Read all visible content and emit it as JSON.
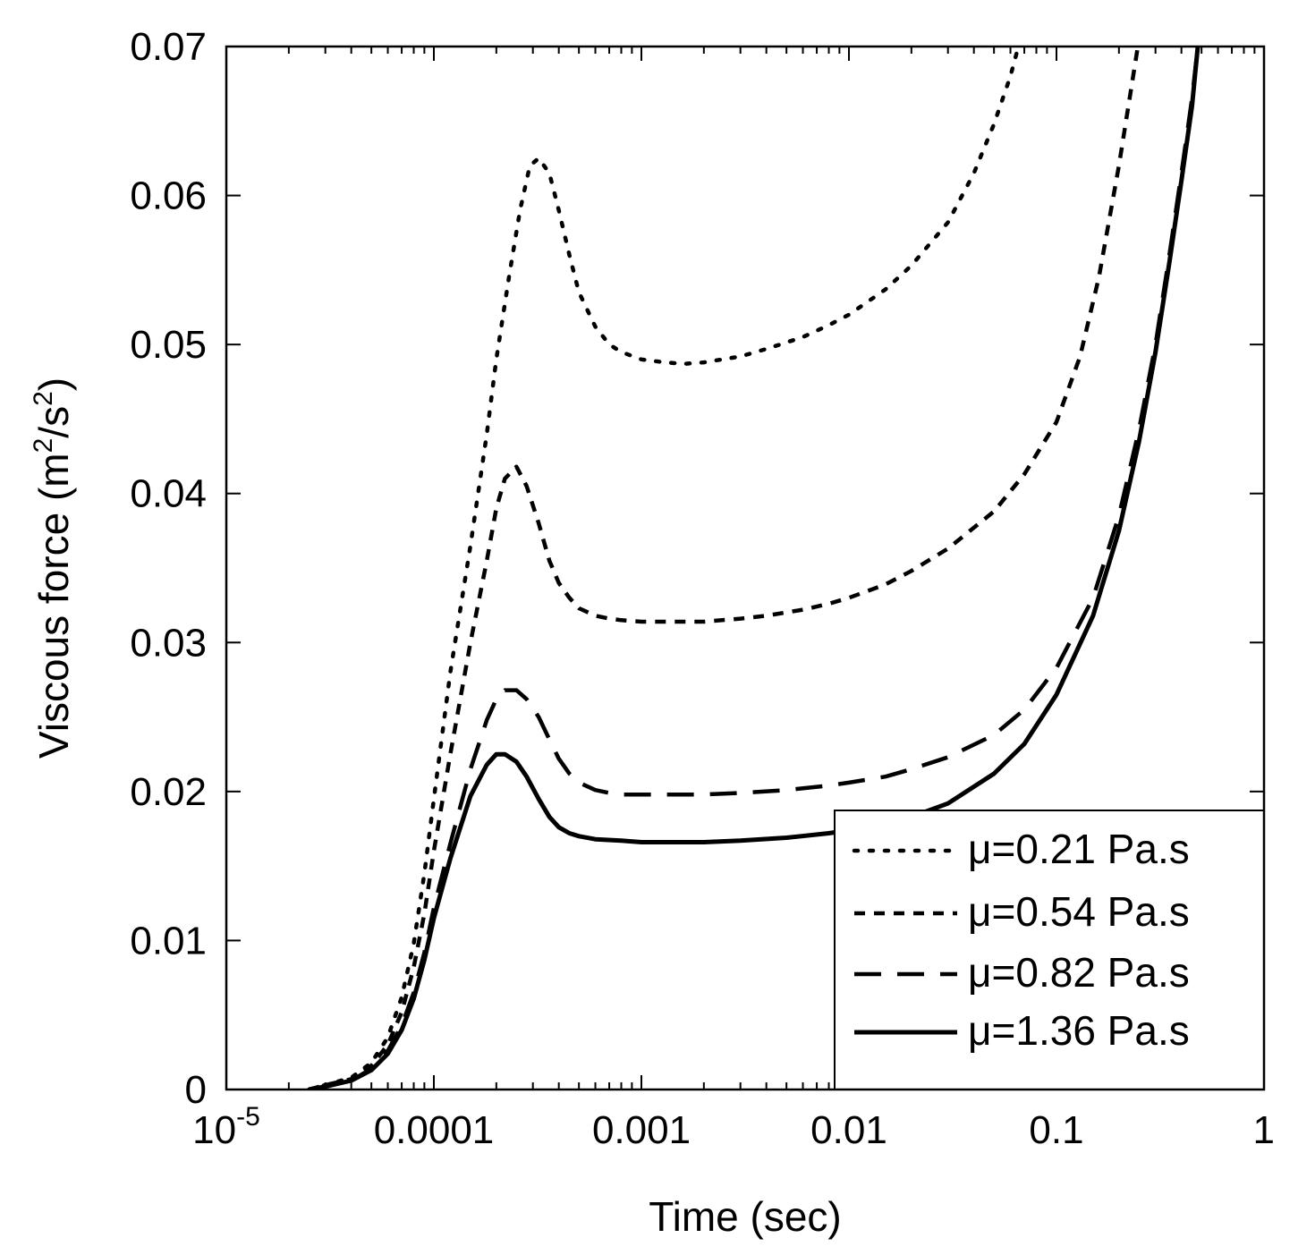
{
  "chart_data": {
    "type": "line",
    "title": "",
    "xlabel": "Time (sec)",
    "ylabel": "Viscous force (m",
    "ylabel_sup1": "2",
    "ylabel_mid": "/s",
    "ylabel_sup2": "2",
    "ylabel_end": ")",
    "xscale": "log",
    "xlim": [
      1e-05,
      1
    ],
    "ylim": [
      0,
      0.07
    ],
    "x_ticks": [
      {
        "value": 1e-05,
        "base": "10",
        "exp": "-5"
      },
      {
        "value": 0.0001,
        "label": "0.0001"
      },
      {
        "value": 0.001,
        "label": "0.001"
      },
      {
        "value": 0.01,
        "label": "0.01"
      },
      {
        "value": 0.1,
        "label": "0.1"
      },
      {
        "value": 1,
        "label": "1"
      }
    ],
    "y_ticks": [
      {
        "value": 0,
        "label": "0"
      },
      {
        "value": 0.01,
        "label": "0.01"
      },
      {
        "value": 0.02,
        "label": "0.02"
      },
      {
        "value": 0.03,
        "label": "0.03"
      },
      {
        "value": 0.04,
        "label": "0.04"
      },
      {
        "value": 0.05,
        "label": "0.05"
      },
      {
        "value": 0.06,
        "label": "0.06"
      },
      {
        "value": 0.07,
        "label": "0.07"
      }
    ],
    "legend_position": "bottom-right",
    "series": [
      {
        "name": "μ=0.21 Pa.s",
        "style": "dotted",
        "x": [
          2.5e-05,
          3e-05,
          4e-05,
          5e-05,
          6e-05,
          7e-05,
          8e-05,
          9e-05,
          0.0001,
          0.00012,
          0.00015,
          0.00018,
          0.0002,
          0.00023,
          0.00026,
          0.00029,
          0.00032,
          0.00036,
          0.0004,
          0.00045,
          0.0005,
          0.0006,
          0.0007,
          0.0008,
          0.001,
          0.0013,
          0.0016,
          0.002,
          0.003,
          0.004,
          0.006,
          0.008,
          0.01,
          0.015,
          0.02,
          0.03,
          0.04,
          0.05,
          0.06,
          0.07
        ],
        "values": [
          0,
          0.0003,
          0.0008,
          0.0018,
          0.0035,
          0.0062,
          0.0098,
          0.0145,
          0.0195,
          0.028,
          0.0365,
          0.044,
          0.049,
          0.0545,
          0.059,
          0.062,
          0.0625,
          0.0615,
          0.059,
          0.056,
          0.0535,
          0.0512,
          0.05,
          0.0495,
          0.049,
          0.0488,
          0.0487,
          0.0488,
          0.0492,
          0.0497,
          0.0505,
          0.0513,
          0.052,
          0.0537,
          0.0553,
          0.0582,
          0.0615,
          0.0648,
          0.068,
          0.0715
        ]
      },
      {
        "name": "μ=0.54 Pa.s",
        "style": "short-dash",
        "x": [
          2.5e-05,
          3e-05,
          4e-05,
          5e-05,
          6e-05,
          7e-05,
          8e-05,
          9e-05,
          0.0001,
          0.00012,
          0.00015,
          0.00018,
          0.0002,
          0.00022,
          0.00025,
          0.00028,
          0.00032,
          0.00036,
          0.0004,
          0.00045,
          0.0005,
          0.0006,
          0.0007,
          0.0008,
          0.001,
          0.0013,
          0.0016,
          0.002,
          0.003,
          0.004,
          0.006,
          0.008,
          0.01,
          0.015,
          0.02,
          0.03,
          0.05,
          0.07,
          0.1,
          0.13,
          0.16,
          0.2,
          0.25
        ],
        "values": [
          0,
          0.0003,
          0.0007,
          0.0016,
          0.003,
          0.0052,
          0.0082,
          0.0118,
          0.016,
          0.0225,
          0.03,
          0.0355,
          0.039,
          0.041,
          0.0418,
          0.0405,
          0.038,
          0.0355,
          0.034,
          0.033,
          0.0323,
          0.0318,
          0.0316,
          0.0315,
          0.0314,
          0.0314,
          0.0314,
          0.0314,
          0.0316,
          0.0318,
          0.0322,
          0.0326,
          0.033,
          0.0339,
          0.0348,
          0.0363,
          0.0388,
          0.0413,
          0.0448,
          0.0492,
          0.0545,
          0.062,
          0.0705
        ]
      },
      {
        "name": "μ=0.82 Pa.s",
        "style": "long-dash",
        "x": [
          2.5e-05,
          3e-05,
          4e-05,
          5e-05,
          6e-05,
          7e-05,
          8e-05,
          9e-05,
          0.0001,
          0.00012,
          0.00015,
          0.00018,
          0.0002,
          0.00022,
          0.00025,
          0.00028,
          0.00032,
          0.00036,
          0.0004,
          0.00045,
          0.0005,
          0.0006,
          0.0007,
          0.0008,
          0.001,
          0.0015,
          0.002,
          0.003,
          0.005,
          0.008,
          0.01,
          0.015,
          0.02,
          0.03,
          0.05,
          0.07,
          0.1,
          0.15,
          0.2,
          0.25,
          0.3,
          0.35,
          0.4,
          0.45,
          0.48
        ],
        "values": [
          0,
          0.0002,
          0.0006,
          0.0014,
          0.0026,
          0.0043,
          0.0065,
          0.0092,
          0.0122,
          0.0165,
          0.0215,
          0.0248,
          0.0262,
          0.0268,
          0.0268,
          0.0262,
          0.025,
          0.0235,
          0.0222,
          0.0212,
          0.0206,
          0.0201,
          0.0199,
          0.0198,
          0.0198,
          0.0198,
          0.0198,
          0.0199,
          0.0201,
          0.0204,
          0.0206,
          0.021,
          0.0215,
          0.0223,
          0.0238,
          0.0255,
          0.0283,
          0.033,
          0.0385,
          0.0443,
          0.05,
          0.056,
          0.0615,
          0.0665,
          0.07
        ]
      },
      {
        "name": "μ=1.36 Pa.s",
        "style": "solid",
        "x": [
          2.5e-05,
          3e-05,
          4e-05,
          5e-05,
          6e-05,
          7e-05,
          8e-05,
          9e-05,
          0.0001,
          0.00012,
          0.00015,
          0.00018,
          0.0002,
          0.00022,
          0.00025,
          0.00028,
          0.00032,
          0.00036,
          0.0004,
          0.00045,
          0.0005,
          0.0006,
          0.0008,
          0.001,
          0.0015,
          0.002,
          0.003,
          0.005,
          0.008,
          0.01,
          0.015,
          0.02,
          0.03,
          0.05,
          0.07,
          0.1,
          0.15,
          0.2,
          0.25,
          0.3,
          0.35,
          0.4,
          0.45,
          0.48
        ],
        "values": [
          0,
          0.0002,
          0.0006,
          0.0013,
          0.0024,
          0.004,
          0.0061,
          0.0087,
          0.0115,
          0.0155,
          0.0197,
          0.0218,
          0.0225,
          0.0225,
          0.022,
          0.021,
          0.0195,
          0.0183,
          0.0176,
          0.0172,
          0.017,
          0.0168,
          0.0167,
          0.0166,
          0.0166,
          0.0166,
          0.0167,
          0.0169,
          0.0172,
          0.0174,
          0.0178,
          0.0183,
          0.0192,
          0.0212,
          0.0232,
          0.0265,
          0.0318,
          0.0375,
          0.0435,
          0.0495,
          0.0555,
          0.061,
          0.066,
          0.07
        ]
      }
    ]
  }
}
